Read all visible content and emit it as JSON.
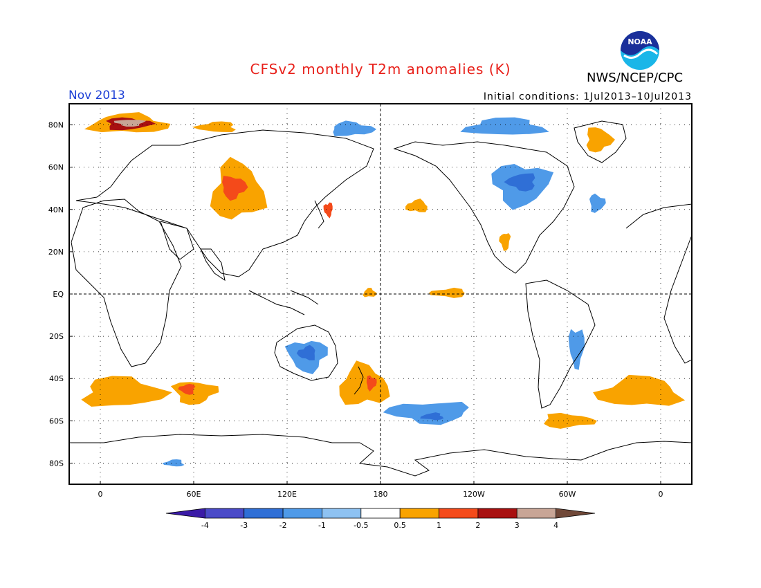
{
  "header": {
    "title": "CFSv2 monthly T2m anomalies (K)",
    "org": "NWS/NCEP/CPC",
    "logo_text": "NOAA",
    "month": "Nov 2013",
    "initial_conditions": "Initial conditions: 1Jul2013–10Jul2013"
  },
  "axes": {
    "lat_labels": [
      "80N",
      "60N",
      "40N",
      "20N",
      "EQ",
      "20S",
      "40S",
      "60S",
      "80S"
    ],
    "lat_values": [
      80,
      60,
      40,
      20,
      0,
      -20,
      -40,
      -60,
      -80
    ],
    "lon_labels": [
      "0",
      "60E",
      "120E",
      "180",
      "120W",
      "60W",
      "0"
    ],
    "lon_values": [
      0,
      60,
      120,
      180,
      240,
      300,
      360
    ],
    "lon_range": [
      -20,
      380
    ],
    "lat_range": [
      -90,
      90
    ]
  },
  "colorbar": {
    "labels": [
      "-4",
      "-3",
      "-2",
      "-1",
      "-0.5",
      "0.5",
      "1",
      "2",
      "3",
      "4"
    ],
    "colors": [
      "#3a1aa6",
      "#4a4ac8",
      "#2f6fd6",
      "#4f9ae8",
      "#8ec2f2",
      "#ffffff",
      "#f9a300",
      "#f44a1a",
      "#a81010",
      "#c8a596",
      "#704838"
    ]
  },
  "colors": {
    "warm_light": "#f9a300",
    "warm_mid": "#f44a1a",
    "warm_dark": "#a81010",
    "warm_extreme": "#c8a596",
    "cold_light": "#8ec2f2",
    "cold_mid": "#4f9ae8",
    "cold_dark": "#2f6fd6",
    "title": "#e8201a",
    "month": "#1c3fd6"
  },
  "anomaly_regions": [
    {
      "name": "Arctic Barents warm",
      "level": 1,
      "lon": [
        -12,
        48
      ],
      "lat": [
        75,
        86
      ]
    },
    {
      "name": "Arctic Kara-Barents core",
      "level": 3,
      "lon": [
        0,
        35
      ],
      "lat": [
        77,
        84
      ]
    },
    {
      "name": "Arctic extreme core",
      "level": 4,
      "lon": [
        8,
        30
      ],
      "lat": [
        79,
        83
      ]
    },
    {
      "name": "Siberia Arctic warm",
      "level": 1,
      "lon": [
        60,
        90
      ],
      "lat": [
        76,
        82
      ]
    },
    {
      "name": "Central Asia warm",
      "level": 1,
      "lon": [
        68,
        108
      ],
      "lat": [
        32,
        65
      ]
    },
    {
      "name": "Central Asia core",
      "level": 2,
      "lon": [
        76,
        95
      ],
      "lat": [
        44,
        57
      ]
    },
    {
      "name": "Japan warm",
      "level": 2,
      "lon": [
        143,
        150
      ],
      "lat": [
        36,
        44
      ]
    },
    {
      "name": "North Pacific warm",
      "level": 1,
      "lon": [
        195,
        212
      ],
      "lat": [
        38,
        45
      ]
    },
    {
      "name": "East Siberian Sea cold",
      "level": -1,
      "lon": [
        145,
        178
      ],
      "lat": [
        74,
        82
      ]
    },
    {
      "name": "Canada cold",
      "level": -1,
      "lon": [
        248,
        292
      ],
      "lat": [
        40,
        64
      ]
    },
    {
      "name": "Canada cold core",
      "level": -2,
      "lon": [
        260,
        282
      ],
      "lat": [
        48,
        58
      ]
    },
    {
      "name": "Arctic Canada cold",
      "level": -1,
      "lon": [
        230,
        290
      ],
      "lat": [
        74,
        84
      ]
    },
    {
      "name": "Greenland warm",
      "level": 1,
      "lon": [
        310,
        330
      ],
      "lat": [
        66,
        80
      ]
    },
    {
      "name": "Australia cold",
      "level": -1,
      "lon": [
        118,
        148
      ],
      "lat": [
        -38,
        -20
      ]
    },
    {
      "name": "Australia cold core",
      "level": -2,
      "lon": [
        126,
        140
      ],
      "lat": [
        -32,
        -24
      ]
    },
    {
      "name": "Tasman warm",
      "level": 1,
      "lon": [
        150,
        188
      ],
      "lat": [
        -55,
        -32
      ]
    },
    {
      "name": "New Zealand core",
      "level": 2,
      "lon": [
        170,
        178
      ],
      "lat": [
        -46,
        -38
      ]
    },
    {
      "name": "Southern Ocean cold",
      "level": -1,
      "lon": [
        180,
        243
      ],
      "lat": [
        -62,
        -50
      ]
    },
    {
      "name": "Southern Ocean cold core",
      "level": -2,
      "lon": [
        205,
        222
      ],
      "lat": [
        -60,
        -56
      ]
    },
    {
      "name": "South Atlantic warm",
      "level": 1,
      "lon": [
        -17,
        45
      ],
      "lat": [
        -55,
        -38
      ]
    },
    {
      "name": "South Indian warm",
      "level": 1,
      "lon": [
        44,
        77
      ],
      "lat": [
        -53,
        -40
      ]
    },
    {
      "name": "South Indian core",
      "level": 2,
      "lon": [
        50,
        62
      ],
      "lat": [
        -48,
        -42
      ]
    },
    {
      "name": "South Atlantic E warm",
      "level": 1,
      "lon": [
        315,
        378
      ],
      "lat": [
        -55,
        -38
      ]
    },
    {
      "name": "Drake warm",
      "level": 1,
      "lon": [
        280,
        320
      ],
      "lat": [
        -64,
        -56
      ]
    },
    {
      "name": "South America cold",
      "level": -1,
      "lon": [
        300,
        312
      ],
      "lat": [
        -36,
        -14
      ]
    },
    {
      "name": "Equatorial Pacific warm",
      "level": 1,
      "lon": [
        210,
        238
      ],
      "lat": [
        -2,
        3
      ]
    },
    {
      "name": "Equatorial W Pacific warm",
      "level": 1,
      "lon": [
        168,
        178
      ],
      "lat": [
        -2,
        3
      ]
    },
    {
      "name": "N Atlantic cold",
      "level": -1,
      "lon": [
        313,
        325
      ],
      "lat": [
        38,
        48
      ]
    },
    {
      "name": "Mexico warm",
      "level": 1,
      "lon": [
        256,
        264
      ],
      "lat": [
        20,
        30
      ]
    },
    {
      "name": "Antarctic cold",
      "level": -1,
      "lon": [
        40,
        55
      ],
      "lat": [
        -82,
        -78
      ]
    }
  ]
}
